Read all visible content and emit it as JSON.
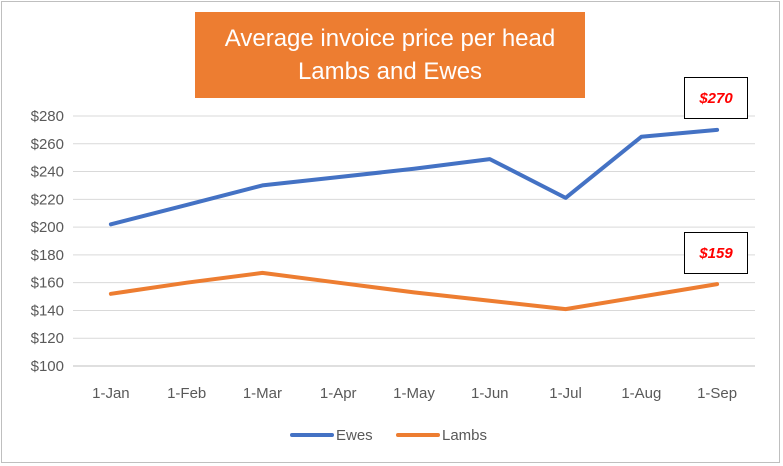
{
  "chart_data": {
    "type": "line",
    "title_lines": [
      "Average invoice price per head",
      "Lambs and Ewes"
    ],
    "categories": [
      "1-Jan",
      "1-Feb",
      "1-Mar",
      "1-Apr",
      "1-May",
      "1-Jun",
      "1-Jul",
      "1-Aug",
      "1-Sep"
    ],
    "y_ticks": [
      "$100",
      "$120",
      "$140",
      "$160",
      "$180",
      "$200",
      "$220",
      "$240",
      "$260",
      "$280"
    ],
    "ylim": [
      100,
      280
    ],
    "y_step": 20,
    "grid": true,
    "legend_position": "bottom",
    "series": [
      {
        "name": "Ewes",
        "color": "#4472c4",
        "values": [
          202,
          216,
          230,
          236,
          242,
          249,
          221,
          265,
          270
        ]
      },
      {
        "name": "Lambs",
        "color": "#ed7d31",
        "values": [
          152,
          160,
          167,
          160,
          153,
          147,
          141,
          150,
          159
        ]
      }
    ],
    "annotations": [
      {
        "text": "$270",
        "series": "Ewes",
        "category": "1-Sep"
      },
      {
        "text": "$159",
        "series": "Lambs",
        "category": "1-Sep"
      }
    ]
  }
}
